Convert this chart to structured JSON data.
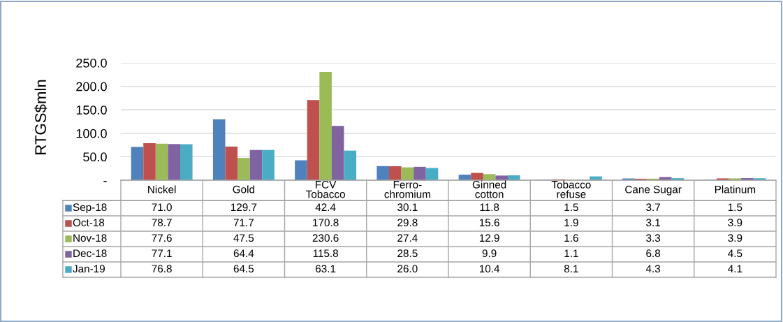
{
  "chart_data": {
    "type": "bar",
    "ylabel": "RTGS$mln",
    "categories": [
      "Nickel",
      "Gold",
      "FCV\nTobacco",
      "Ferro-\nchromium",
      "Ginned\ncotton",
      "Tobacco\nrefuse",
      "Cane Sugar",
      "Platinum"
    ],
    "series": [
      {
        "name": "Sep-18",
        "color": "#4f81bd",
        "values": [
          71.0,
          129.7,
          42.4,
          30.1,
          11.8,
          1.5,
          3.7,
          1.5
        ],
        "value_labels": [
          "71.0",
          "129.7",
          "42.4",
          "30.1",
          "11.8",
          "1.5",
          "3.7",
          "1.5"
        ]
      },
      {
        "name": "Oct-18",
        "color": "#c0504d",
        "values": [
          78.7,
          71.7,
          170.8,
          29.8,
          15.6,
          1.9,
          3.1,
          3.9
        ],
        "value_labels": [
          "78.7",
          "71.7",
          "170.8",
          "29.8",
          "15.6",
          "1.9",
          "3.1",
          "3.9"
        ]
      },
      {
        "name": "Nov-18",
        "color": "#9bbb59",
        "values": [
          77.6,
          47.5,
          230.6,
          27.4,
          12.9,
          1.6,
          3.3,
          3.9
        ],
        "value_labels": [
          "77.6",
          "47.5",
          "230.6",
          "27.4",
          "12.9",
          "1.6",
          "3.3",
          "3.9"
        ]
      },
      {
        "name": "Dec-18",
        "color": "#8064a2",
        "values": [
          77.1,
          64.4,
          115.8,
          28.5,
          9.9,
          1.1,
          6.8,
          4.5
        ],
        "value_labels": [
          "77.1",
          "64.4",
          "115.8",
          "28.5",
          "9.9",
          "1.1",
          "6.8",
          "4.5"
        ]
      },
      {
        "name": "Jan-19",
        "color": "#4bacc6",
        "values": [
          76.8,
          64.5,
          63.1,
          26.0,
          10.4,
          8.1,
          4.3,
          4.1
        ],
        "value_labels": [
          "76.8",
          "64.5",
          "63.1",
          "26.0",
          "10.4",
          "8.1",
          "4.3",
          "4.1"
        ]
      }
    ],
    "ylim": [
      0,
      250
    ],
    "yticks": [
      {
        "value": 0,
        "label": "-"
      },
      {
        "value": 50,
        "label": "50.0"
      },
      {
        "value": 100,
        "label": "100.0"
      },
      {
        "value": 150,
        "label": "150.0"
      },
      {
        "value": 200,
        "label": "200.0"
      },
      {
        "value": 250,
        "label": "250.0"
      }
    ],
    "grid": "y",
    "legend": "left"
  }
}
